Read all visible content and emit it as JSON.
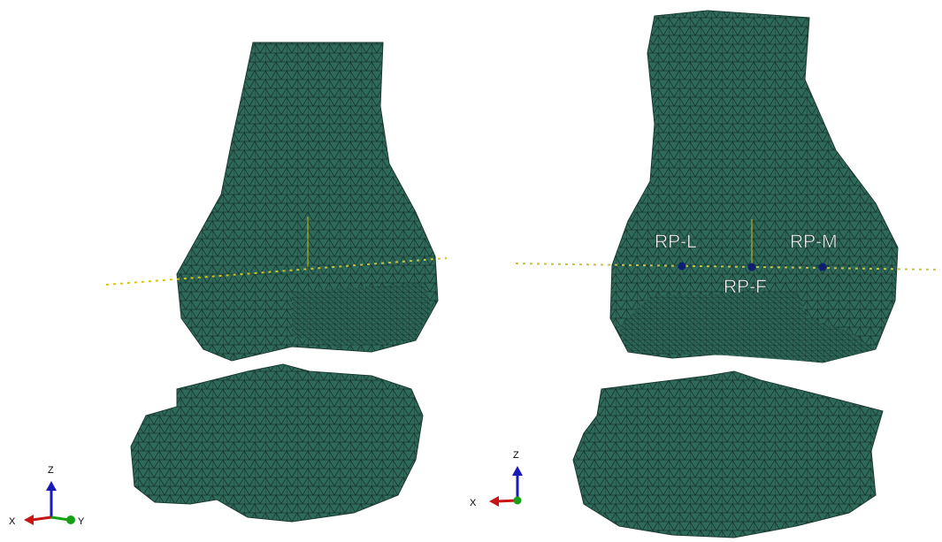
{
  "left_view": {
    "triad": {
      "z": "Z",
      "x": "X",
      "y": "Y"
    }
  },
  "right_view": {
    "reference_points": [
      "RP-L",
      "RP-F",
      "RP-M"
    ],
    "triad": {
      "z": "Z",
      "x": "X"
    }
  }
}
